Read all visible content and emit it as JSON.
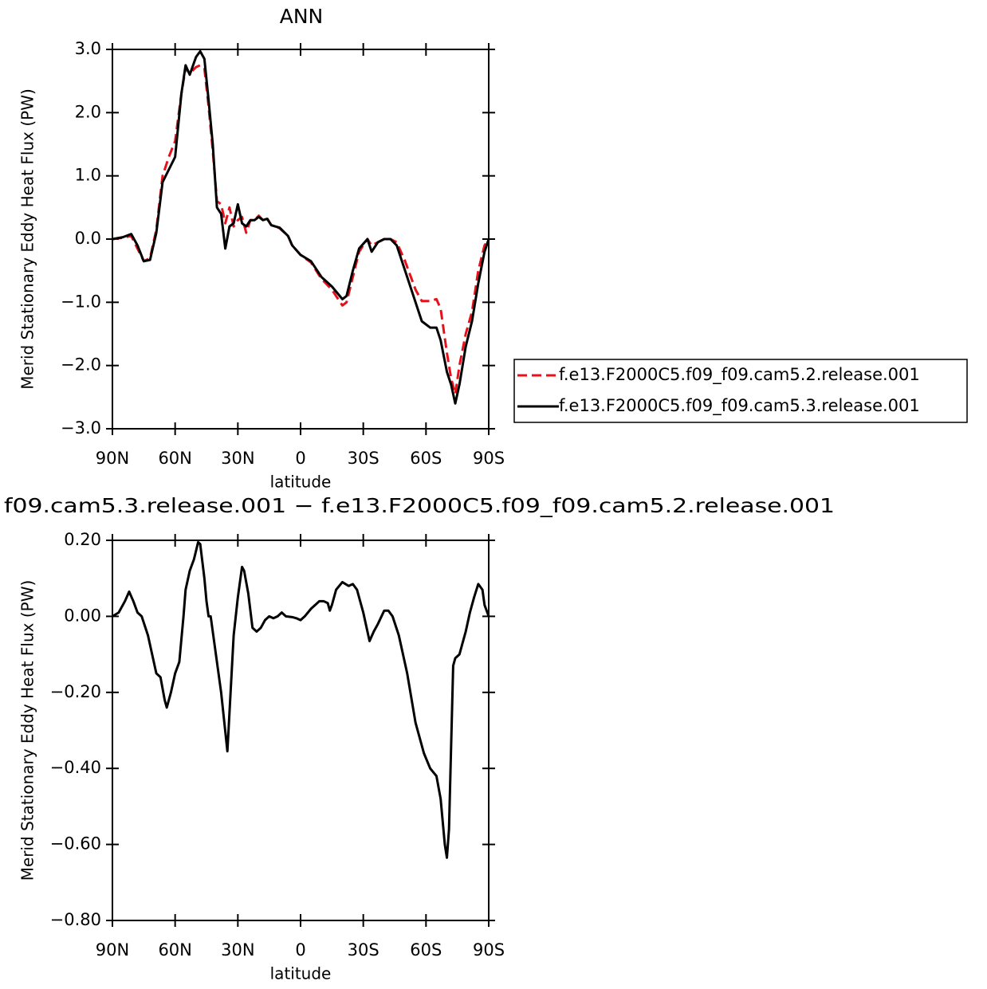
{
  "chart_data": [
    {
      "type": "line",
      "title": "ANN",
      "xlabel": "latitude",
      "ylabel": "Merid Stationary Eddy Heat Flux (PW)",
      "x": [
        90,
        85,
        81,
        78,
        75,
        72,
        69,
        66,
        63,
        60,
        57,
        55,
        53,
        50,
        48,
        46,
        44,
        42,
        40,
        38,
        36,
        34,
        32,
        30,
        28,
        26,
        24,
        22,
        20,
        18,
        16,
        14,
        12,
        10,
        6,
        4,
        0,
        -5,
        -10,
        -15,
        -20,
        -22,
        -25,
        -28,
        -32,
        -34,
        -37,
        -40,
        -43,
        -46,
        -50,
        -55,
        -58,
        -62,
        -65,
        -67,
        -70,
        -72,
        -74,
        -76,
        -79,
        -82,
        -85,
        -88,
        -90
      ],
      "series": [
        {
          "name": "f.e13.F2000C5.f09_f09.cam5.2.release.001",
          "color": "#e8101a",
          "dashed": true,
          "values": [
            0,
            0.02,
            0.05,
            -0.15,
            -0.35,
            -0.3,
            0.15,
            1.0,
            1.3,
            1.55,
            2.3,
            2.7,
            2.62,
            2.72,
            2.75,
            2.7,
            2.1,
            1.4,
            0.6,
            0.55,
            0.25,
            0.5,
            0.2,
            0.3,
            0.35,
            0.1,
            0.3,
            0.3,
            0.37,
            0.3,
            0.33,
            0.22,
            0.2,
            0.17,
            0.05,
            -0.1,
            -0.25,
            -0.37,
            -0.63,
            -0.8,
            -1.05,
            -1.0,
            -0.6,
            -0.2,
            0.0,
            -0.1,
            -0.05,
            0.0,
            0.0,
            -0.05,
            -0.35,
            -0.8,
            -0.98,
            -0.98,
            -0.95,
            -1.1,
            -1.8,
            -2.2,
            -2.45,
            -2.0,
            -1.5,
            -1.15,
            -0.5,
            -0.1,
            0
          ]
        },
        {
          "name": "f.e13.F2000C5.f09_f09.cam5.3.release.001",
          "color": "#000000",
          "dashed": false,
          "values": [
            0,
            0.03,
            0.08,
            -0.1,
            -0.35,
            -0.33,
            0.1,
            0.9,
            1.1,
            1.3,
            2.3,
            2.75,
            2.6,
            2.88,
            2.97,
            2.85,
            2.2,
            1.5,
            0.5,
            0.4,
            -0.15,
            0.2,
            0.25,
            0.55,
            0.25,
            0.2,
            0.3,
            0.3,
            0.35,
            0.3,
            0.32,
            0.22,
            0.2,
            0.18,
            0.05,
            -0.1,
            -0.25,
            -0.35,
            -0.6,
            -0.75,
            -0.95,
            -0.9,
            -0.5,
            -0.15,
            0.0,
            -0.2,
            -0.05,
            0.0,
            0.0,
            -0.1,
            -0.5,
            -1.0,
            -1.3,
            -1.4,
            -1.4,
            -1.6,
            -2.1,
            -2.3,
            -2.6,
            -2.3,
            -1.7,
            -1.3,
            -0.7,
            -0.2,
            0
          ]
        }
      ],
      "xlim": [
        90,
        -90
      ],
      "xticks": [
        {
          "value": 90,
          "label": "90N"
        },
        {
          "value": 60,
          "label": "60N"
        },
        {
          "value": 30,
          "label": "30N"
        },
        0,
        {
          "value": -30,
          "label": "30S"
        },
        {
          "value": -60,
          "label": "60S"
        },
        {
          "value": -90,
          "label": "90S"
        }
      ],
      "ylim": [
        -3,
        3
      ],
      "yticks": [
        {
          "value": 3,
          "label": "3.0"
        },
        {
          "value": 2,
          "label": "2.0"
        },
        {
          "value": 1,
          "label": "1.0"
        },
        {
          "value": 0,
          "label": "0.0"
        },
        {
          "value": -1,
          "label": "−1.0"
        },
        {
          "value": -2,
          "label": "−2.0"
        },
        {
          "value": -3,
          "label": "−3.0"
        }
      ],
      "legend": "right"
    },
    {
      "type": "line",
      "title": "f09.cam5.3.release.001 − f.e13.F2000C5.f09_f09.cam5.2.release.001",
      "xlabel": "latitude",
      "ylabel": "Merid Stationary Eddy Heat Flux (PW)",
      "x": [
        90,
        87,
        84,
        82,
        80,
        78,
        76,
        73,
        71,
        69,
        67,
        65,
        64,
        62,
        60,
        58,
        56,
        55,
        53,
        51,
        49,
        48,
        46,
        45,
        44,
        43,
        41,
        38,
        35,
        32,
        30,
        28,
        27,
        25,
        23,
        21,
        19,
        17,
        15,
        13,
        11,
        9,
        7,
        4,
        2,
        0,
        -2,
        -5,
        -7,
        -9,
        -11,
        -13,
        -14,
        -15,
        -17,
        -20,
        -23,
        -25,
        -27,
        -29,
        -30,
        -33,
        -35,
        -37,
        -40,
        -42,
        -44,
        -47,
        -51,
        -55,
        -59,
        -62,
        -65,
        -67,
        -69,
        -70,
        -71,
        -73,
        -74,
        -76,
        -78,
        -79,
        -81,
        -83,
        -85,
        -87,
        -88,
        -90
      ],
      "series": [
        {
          "color": "#000000",
          "dashed": false,
          "values": [
            0,
            0.01,
            0.04,
            0.065,
            0.04,
            0.01,
            0,
            -0.05,
            -0.1,
            -0.15,
            -0.16,
            -0.22,
            -0.24,
            -0.2,
            -0.15,
            -0.12,
            0,
            0.07,
            0.12,
            0.15,
            0.195,
            0.19,
            0.1,
            0.04,
            0,
            0,
            -0.08,
            -0.2,
            -0.355,
            -0.05,
            0.05,
            0.13,
            0.12,
            0.06,
            -0.03,
            -0.04,
            -0.03,
            -0.01,
            0,
            -0.005,
            0,
            0.01,
            0,
            -0.002,
            -0.005,
            -0.01,
            0,
            0.02,
            0.03,
            0.04,
            0.04,
            0.035,
            0.015,
            0.03,
            0.07,
            0.09,
            0.08,
            0.085,
            0.07,
            0.03,
            0.01,
            -0.065,
            -0.04,
            -0.02,
            0.015,
            0.015,
            0,
            -0.05,
            -0.15,
            -0.28,
            -0.36,
            -0.4,
            -0.42,
            -0.48,
            -0.6,
            -0.635,
            -0.56,
            -0.13,
            -0.11,
            -0.1,
            -0.06,
            -0.04,
            0.01,
            0.05,
            0.085,
            0.07,
            0.03,
            0
          ]
        }
      ],
      "xlim": [
        90,
        -90
      ],
      "xticks": [
        {
          "value": 90,
          "label": "90N"
        },
        {
          "value": 60,
          "label": "60N"
        },
        {
          "value": 30,
          "label": "30N"
        },
        0,
        {
          "value": -30,
          "label": "30S"
        },
        {
          "value": -60,
          "label": "60S"
        },
        {
          "value": -90,
          "label": "90S"
        }
      ],
      "ylim": [
        -0.8,
        0.2
      ],
      "yticks": [
        {
          "value": 0.2,
          "label": "0.20"
        },
        {
          "value": 0,
          "label": "0.00"
        },
        {
          "value": -0.2,
          "label": "−0.20"
        },
        {
          "value": -0.4,
          "label": "−0.40"
        },
        {
          "value": -0.6,
          "label": "−0.60"
        },
        {
          "value": -0.8,
          "label": "−0.80"
        }
      ]
    }
  ]
}
